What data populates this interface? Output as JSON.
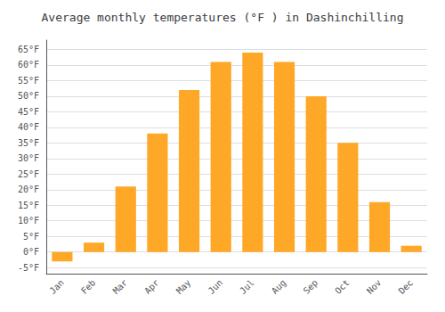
{
  "chart_data": {
    "type": "bar",
    "title": "Average monthly temperatures (°F ) in Dashinchilling",
    "categories": [
      "Jan",
      "Feb",
      "Mar",
      "Apr",
      "May",
      "Jun",
      "Jul",
      "Aug",
      "Sep",
      "Oct",
      "Nov",
      "Dec"
    ],
    "values": [
      -3,
      3,
      21,
      38,
      52,
      61,
      64,
      61,
      50,
      35,
      16,
      2
    ],
    "color": "#FFA726",
    "ylim": [
      -7,
      68
    ],
    "yticks": [
      {
        "value": -5,
        "label": "-5°F"
      },
      {
        "value": 0,
        "label": "0°F"
      },
      {
        "value": 5,
        "label": "5°F"
      },
      {
        "value": 10,
        "label": "10°F"
      },
      {
        "value": 15,
        "label": "15°F"
      },
      {
        "value": 20,
        "label": "20°F"
      },
      {
        "value": 25,
        "label": "25°F"
      },
      {
        "value": 30,
        "label": "30°F"
      },
      {
        "value": 35,
        "label": "35°F"
      },
      {
        "value": 40,
        "label": "40°F"
      },
      {
        "value": 45,
        "label": "45°F"
      },
      {
        "value": 50,
        "label": "50°F"
      },
      {
        "value": 55,
        "label": "55°F"
      },
      {
        "value": 60,
        "label": "60°F"
      },
      {
        "value": 65,
        "label": "65°F"
      }
    ],
    "grid": true
  }
}
